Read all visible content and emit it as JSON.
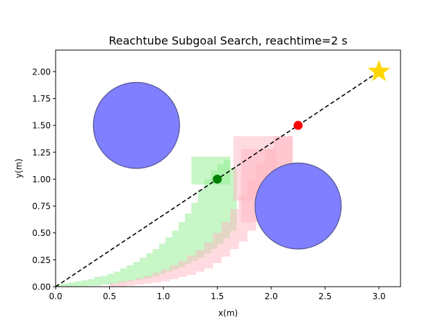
{
  "chart_data": {
    "type": "scatter",
    "title": "Reachtube Subgoal Search, reachtime=2 s",
    "xlabel": "x(m)",
    "ylabel": "y(m)",
    "xlim": [
      0,
      3.2
    ],
    "ylim": [
      0,
      2.2
    ],
    "xticks": [
      0.0,
      0.5,
      1.0,
      1.5,
      2.0,
      2.5,
      3.0
    ],
    "xtick_labels": [
      "0.0",
      "0.5",
      "1.0",
      "1.5",
      "2.0",
      "2.5",
      "3.0"
    ],
    "yticks": [
      0.0,
      0.25,
      0.5,
      0.75,
      1.0,
      1.25,
      1.5,
      1.75,
      2.0
    ],
    "ytick_labels": [
      "0.00",
      "0.25",
      "0.50",
      "0.75",
      "1.00",
      "1.25",
      "1.50",
      "1.75",
      "2.00"
    ],
    "grid": false,
    "colors": {
      "obstacle_fill": "#7f7fff",
      "obstacle_edge": "#55558f",
      "path": "#000000",
      "start_subgoal": "#008000",
      "rejected_subgoal": "#ff0000",
      "goal": "#ffd700",
      "green_tube": "#90ee90",
      "pink_tube": "#ffb6c1"
    },
    "obstacles": [
      {
        "name": "obstacle-left",
        "center": [
          0.75,
          1.5
        ],
        "radius": 0.4
      },
      {
        "name": "obstacle-right",
        "center": [
          2.25,
          0.75
        ],
        "radius": 0.4
      }
    ],
    "path_line": {
      "x": [
        0.0,
        3.0
      ],
      "y": [
        0.0,
        2.0
      ],
      "style": "dashed"
    },
    "points": [
      {
        "name": "green-subgoal",
        "x": 1.5,
        "y": 1.0,
        "marker": "circle",
        "color": "#008000"
      },
      {
        "name": "red-subgoal",
        "x": 2.25,
        "y": 1.5,
        "marker": "circle",
        "color": "#ff0000"
      },
      {
        "name": "goal-star",
        "x": 3.0,
        "y": 2.0,
        "marker": "star",
        "color": "#ffd700"
      }
    ],
    "reachtubes": [
      {
        "name": "green-reachtube",
        "color": "#90ee90",
        "boxes": [
          [
            0.0,
            0.06,
            0.0,
            0.02
          ],
          [
            0.06,
            0.12,
            0.0,
            0.03
          ],
          [
            0.12,
            0.18,
            0.0,
            0.04
          ],
          [
            0.18,
            0.24,
            0.0,
            0.05
          ],
          [
            0.24,
            0.3,
            0.0,
            0.06
          ],
          [
            0.3,
            0.36,
            0.01,
            0.07
          ],
          [
            0.36,
            0.42,
            0.01,
            0.09
          ],
          [
            0.42,
            0.48,
            0.02,
            0.1
          ],
          [
            0.48,
            0.54,
            0.02,
            0.12
          ],
          [
            0.54,
            0.6,
            0.03,
            0.14
          ],
          [
            0.6,
            0.66,
            0.04,
            0.17
          ],
          [
            0.66,
            0.72,
            0.05,
            0.2
          ],
          [
            0.72,
            0.78,
            0.06,
            0.23
          ],
          [
            0.78,
            0.84,
            0.07,
            0.27
          ],
          [
            0.84,
            0.9,
            0.08,
            0.31
          ],
          [
            0.9,
            0.96,
            0.1,
            0.35
          ],
          [
            0.96,
            1.02,
            0.12,
            0.4
          ],
          [
            1.02,
            1.08,
            0.14,
            0.46
          ],
          [
            1.08,
            1.14,
            0.16,
            0.52
          ],
          [
            1.14,
            1.2,
            0.18,
            0.6
          ],
          [
            1.2,
            1.26,
            0.21,
            0.68
          ],
          [
            1.26,
            1.32,
            0.24,
            0.78
          ],
          [
            1.32,
            1.38,
            0.27,
            0.9
          ],
          [
            1.38,
            1.44,
            0.31,
            1.0
          ],
          [
            1.44,
            1.5,
            0.35,
            1.08
          ],
          [
            1.5,
            1.56,
            0.4,
            1.14
          ],
          [
            1.56,
            1.62,
            0.45,
            1.18
          ],
          [
            1.62,
            1.68,
            0.52,
            1.1
          ],
          [
            1.26,
            1.62,
            0.95,
            1.21
          ]
        ]
      },
      {
        "name": "pink-reachtube",
        "color": "#ffb6c1",
        "boxes": [
          [
            0.5,
            0.58,
            0.0,
            0.03
          ],
          [
            0.58,
            0.66,
            0.0,
            0.05
          ],
          [
            0.66,
            0.74,
            0.01,
            0.06
          ],
          [
            0.74,
            0.82,
            0.02,
            0.08
          ],
          [
            0.82,
            0.9,
            0.03,
            0.1
          ],
          [
            0.9,
            0.98,
            0.04,
            0.13
          ],
          [
            0.98,
            1.06,
            0.05,
            0.16
          ],
          [
            1.06,
            1.14,
            0.07,
            0.2
          ],
          [
            1.14,
            1.22,
            0.09,
            0.24
          ],
          [
            1.22,
            1.3,
            0.11,
            0.29
          ],
          [
            1.3,
            1.38,
            0.14,
            0.34
          ],
          [
            1.38,
            1.46,
            0.17,
            0.41
          ],
          [
            1.46,
            1.54,
            0.22,
            0.5
          ],
          [
            1.54,
            1.62,
            0.28,
            0.6
          ],
          [
            1.62,
            1.7,
            0.35,
            0.72
          ],
          [
            1.7,
            1.78,
            0.42,
            0.85
          ],
          [
            1.78,
            1.86,
            0.52,
            1.0
          ],
          [
            1.86,
            1.94,
            0.62,
            1.15
          ],
          [
            1.94,
            2.02,
            0.72,
            1.28
          ],
          [
            2.02,
            2.1,
            0.83,
            1.4
          ],
          [
            2.1,
            2.2,
            0.9,
            1.4
          ],
          [
            1.65,
            2.2,
            0.8,
            1.4
          ],
          [
            1.72,
            2.05,
            0.6,
            1.28
          ]
        ]
      }
    ]
  }
}
